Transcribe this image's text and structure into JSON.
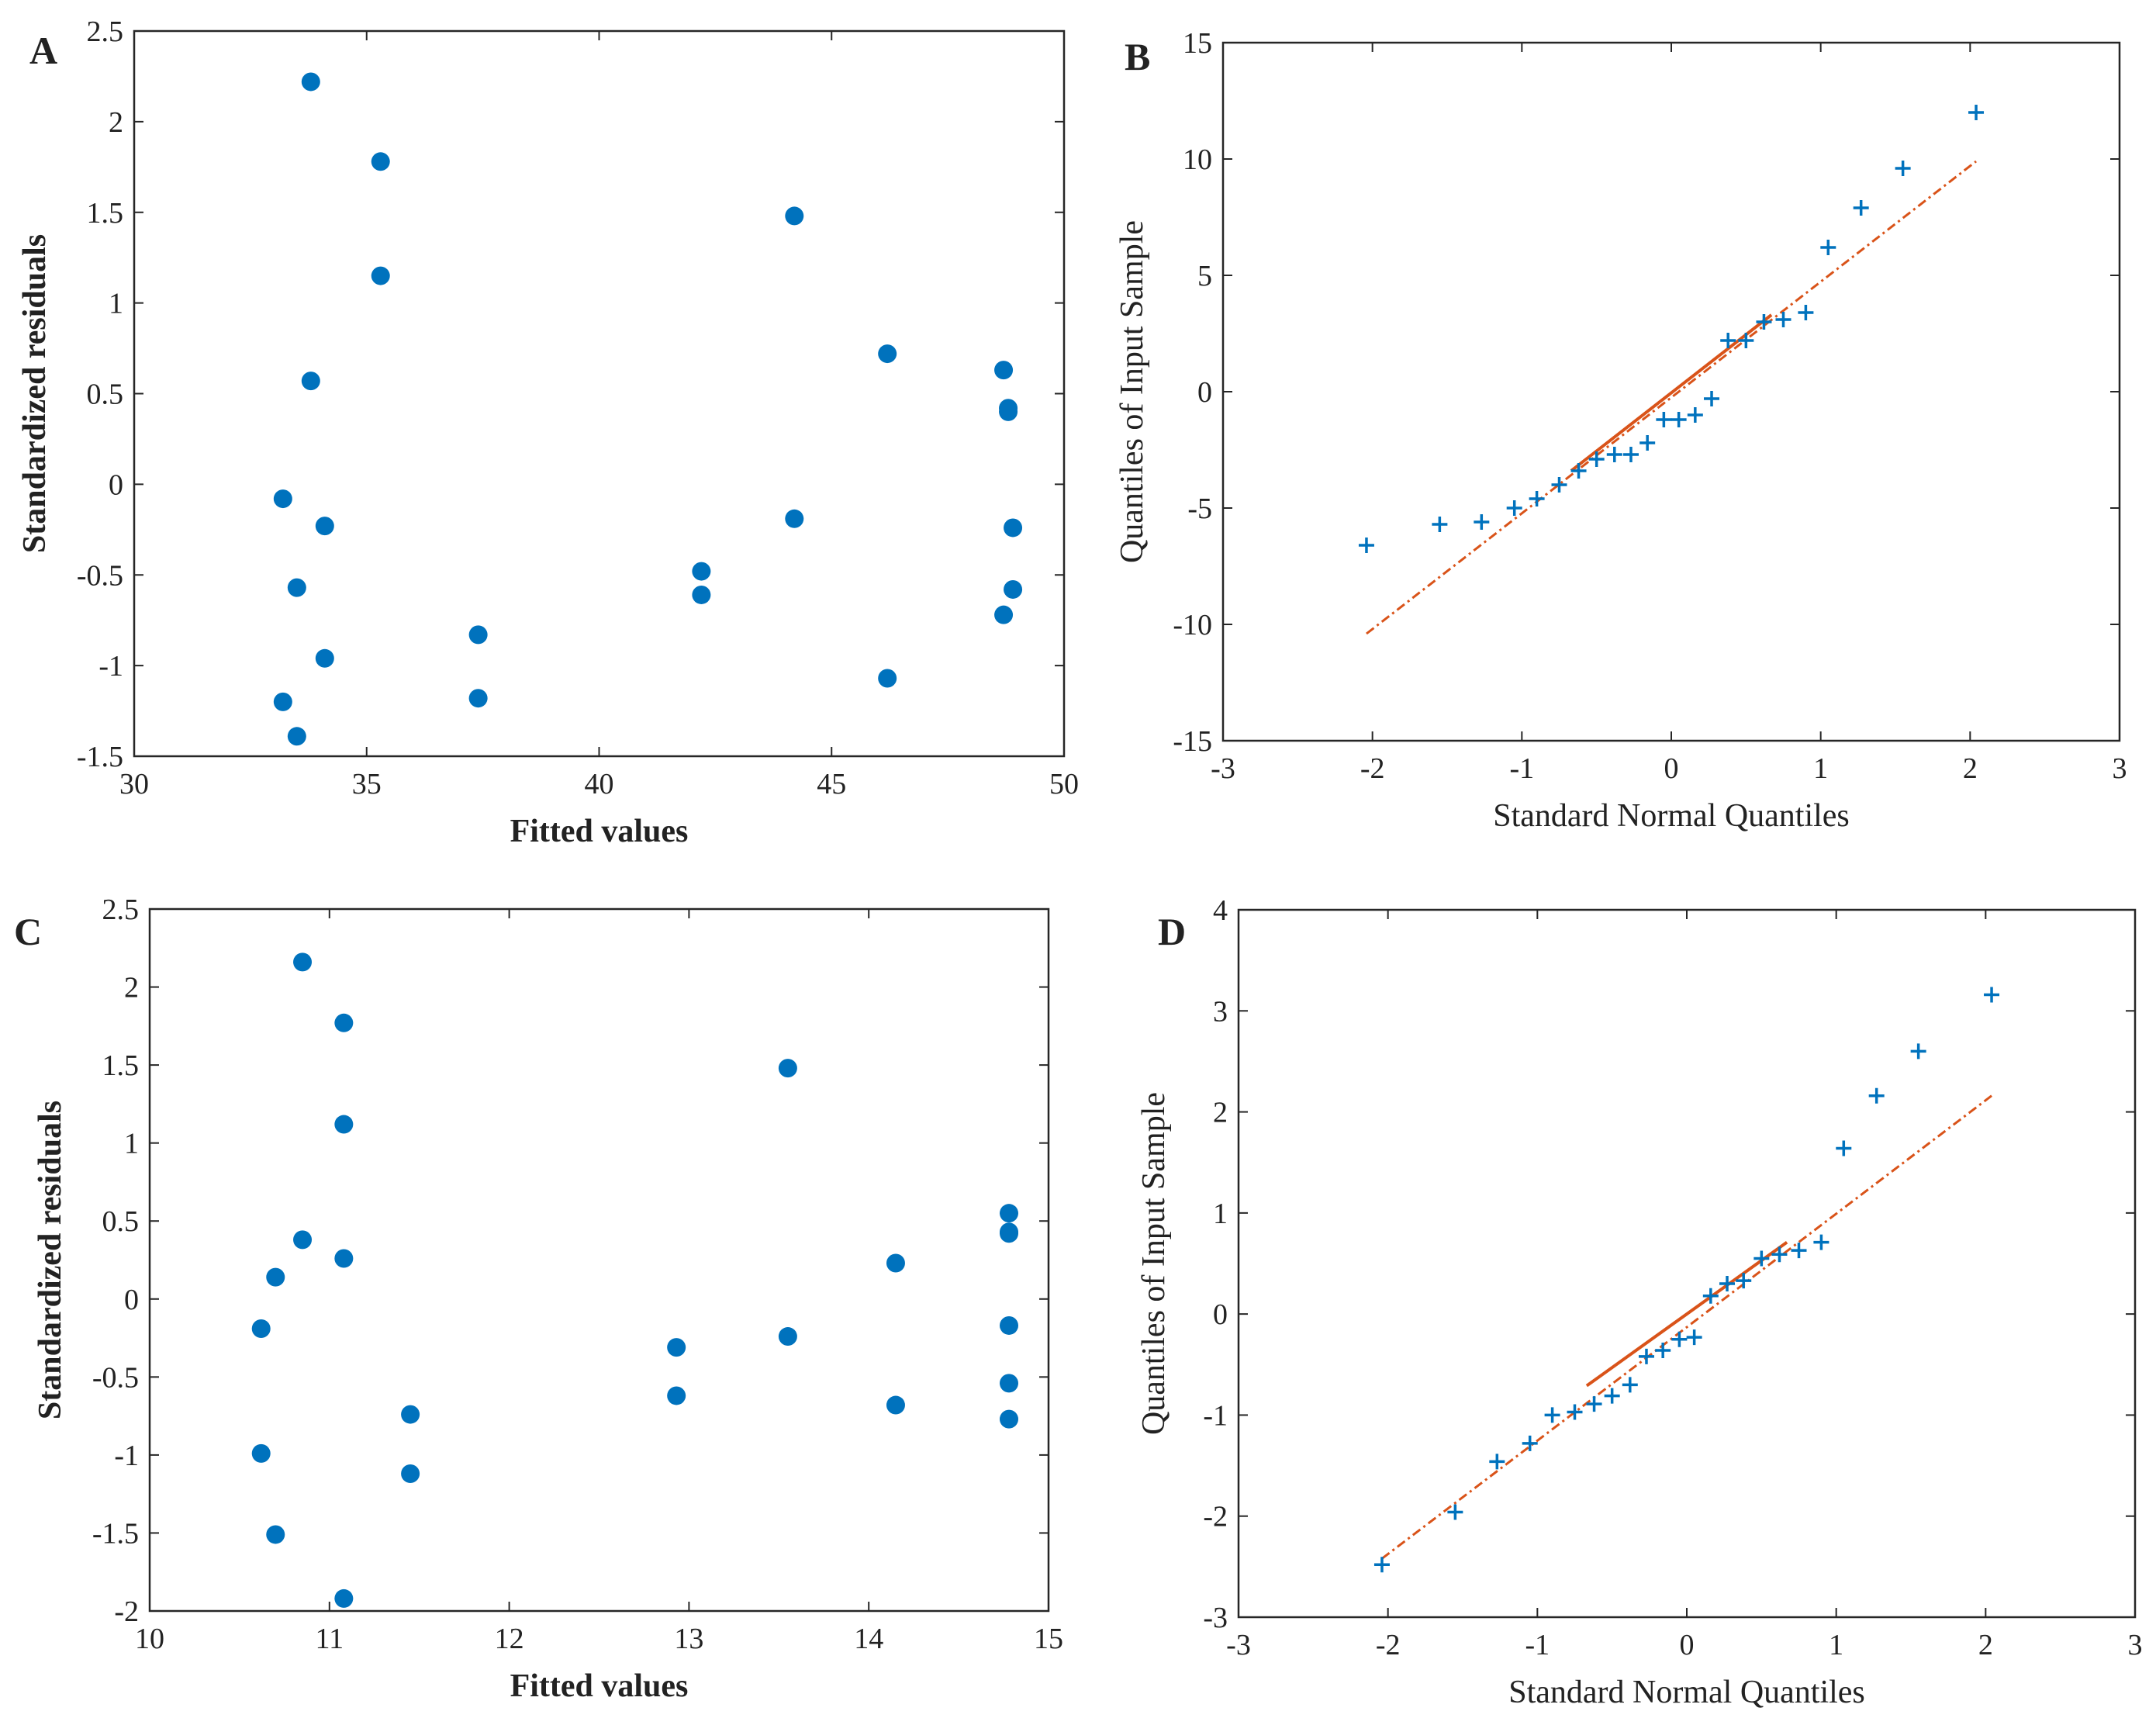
{
  "chart_data": [
    {
      "panel": "A",
      "type": "scatter",
      "xlabel": "Fitted values",
      "ylabel": "Standardized residuals",
      "xlim": [
        30,
        50
      ],
      "ylim": [
        -1.5,
        2.5
      ],
      "xticks": [
        "30",
        "35",
        "40",
        "45",
        "50"
      ],
      "yticks": [
        "-1.5",
        "-1",
        "-0.5",
        "0",
        "0.5",
        "1",
        "1.5",
        "2",
        "2.5"
      ],
      "marker_color": "#0072BD",
      "series": [
        {
          "x": [
            33.8,
            35.3,
            35.3,
            44.2,
            46.2,
            48.7,
            48.8,
            48.8,
            33.8,
            33.2,
            34.1,
            44.2,
            48.9,
            42.2,
            33.5,
            42.2,
            48.9,
            48.7,
            37.4,
            34.1,
            46.2,
            37.4,
            33.2,
            33.5
          ],
          "y": [
            2.22,
            1.78,
            1.15,
            1.48,
            0.72,
            0.63,
            0.42,
            0.4,
            0.57,
            -0.08,
            -0.23,
            -0.19,
            -0.24,
            -0.48,
            -0.57,
            -0.61,
            -0.58,
            -0.72,
            -0.83,
            -0.96,
            -1.07,
            -1.18,
            -1.2,
            -1.39
          ]
        }
      ]
    },
    {
      "panel": "B",
      "type": "scatter",
      "xlabel": "Standard Normal Quantiles",
      "ylabel": "Quantiles of Input Sample",
      "xlim": [
        -3,
        3
      ],
      "ylim": [
        -15,
        15
      ],
      "xticks": [
        "-3",
        "-2",
        "-1",
        "0",
        "1",
        "2",
        "3"
      ],
      "yticks": [
        "-15",
        "-10",
        "-5",
        "0",
        "5",
        "10",
        "15"
      ],
      "marker_color": "#0072BD",
      "line_color": "#D95319",
      "series": [
        {
          "x": [
            -2.04,
            -1.55,
            -1.27,
            -1.05,
            -0.9,
            -0.75,
            -0.62,
            -0.5,
            -0.38,
            -0.27,
            -0.16,
            -0.05,
            0.05,
            0.16,
            0.27,
            0.38,
            0.5,
            0.62,
            0.75,
            0.9,
            1.05,
            1.27,
            1.55,
            2.04
          ],
          "y": [
            -6.6,
            -5.7,
            -5.6,
            -5.0,
            -4.6,
            -4.0,
            -3.4,
            -2.9,
            -2.7,
            -2.7,
            -2.2,
            -1.2,
            -1.2,
            -1.0,
            -0.3,
            2.2,
            2.2,
            3.0,
            3.1,
            3.4,
            6.2,
            7.9,
            9.6,
            12.0
          ]
        }
      ],
      "reference_line": {
        "solid": [
          [
            -0.67,
            -3.4
          ],
          [
            0.67,
            3.3
          ]
        ],
        "dashed": [
          [
            -2.04,
            -10.4
          ],
          [
            2.04,
            9.9
          ]
        ]
      }
    },
    {
      "panel": "C",
      "type": "scatter",
      "xlabel": "Fitted values",
      "ylabel": "Standardized residuals",
      "xlim": [
        10,
        15
      ],
      "ylim": [
        -2,
        2.5
      ],
      "xticks": [
        "10",
        "11",
        "12",
        "13",
        "14",
        "15"
      ],
      "yticks": [
        "-2",
        "-1.5",
        "-1",
        "-0.5",
        "0",
        "0.5",
        "1",
        "1.5",
        "2",
        "2.5"
      ],
      "marker_color": "#0072BD",
      "series": [
        {
          "x": [
            10.85,
            11.08,
            11.08,
            13.55,
            14.78,
            14.78,
            14.78,
            10.85,
            11.08,
            14.15,
            10.7,
            10.62,
            14.78,
            13.55,
            12.93,
            14.78,
            12.93,
            14.15,
            11.45,
            14.78,
            10.62,
            11.45,
            10.7,
            11.08
          ],
          "y": [
            2.16,
            1.77,
            1.12,
            1.48,
            0.55,
            0.43,
            0.42,
            0.38,
            0.26,
            0.23,
            0.14,
            -0.19,
            -0.17,
            -0.24,
            -0.31,
            -0.54,
            -0.62,
            -0.68,
            -0.74,
            -0.77,
            -0.99,
            -1.12,
            -1.51,
            -1.92
          ]
        }
      ]
    },
    {
      "panel": "D",
      "type": "scatter",
      "xlabel": "Standard Normal Quantiles",
      "ylabel": "Quantiles of Input Sample",
      "xlim": [
        -3,
        3
      ],
      "ylim": [
        -3,
        4
      ],
      "xticks": [
        "-3",
        "-2",
        "-1",
        "0",
        "1",
        "2",
        "3"
      ],
      "yticks": [
        "-3",
        "-2",
        "-1",
        "0",
        "1",
        "2",
        "3",
        "4"
      ],
      "marker_color": "#0072BD",
      "line_color": "#D95319",
      "series": [
        {
          "x": [
            -2.04,
            -1.55,
            -1.27,
            -1.05,
            -0.9,
            -0.75,
            -0.62,
            -0.5,
            -0.38,
            -0.27,
            -0.16,
            -0.05,
            0.05,
            0.16,
            0.27,
            0.38,
            0.5,
            0.62,
            0.75,
            0.9,
            1.05,
            1.27,
            1.55,
            2.04
          ],
          "y": [
            -2.48,
            -1.96,
            -1.46,
            -1.28,
            -1.0,
            -0.97,
            -0.89,
            -0.81,
            -0.7,
            -0.42,
            -0.36,
            -0.25,
            -0.23,
            0.18,
            0.3,
            0.33,
            0.55,
            0.59,
            0.63,
            0.71,
            1.64,
            2.16,
            2.6,
            3.16
          ]
        }
      ],
      "reference_line": {
        "solid": [
          [
            -0.67,
            -0.71
          ],
          [
            0.67,
            0.71
          ]
        ],
        "dashed": [
          [
            -2.04,
            -2.42
          ],
          [
            2.04,
            2.16
          ]
        ]
      }
    }
  ]
}
